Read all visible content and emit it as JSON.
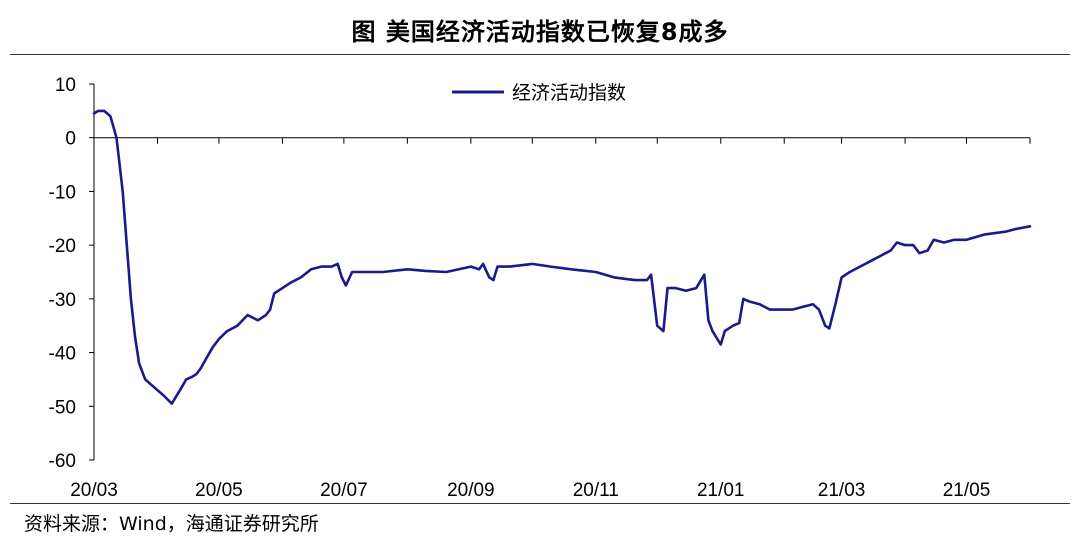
{
  "chart_data": {
    "type": "line",
    "title": "图  美国经济活动指数已恢复8成多",
    "xlabel": "",
    "ylabel": "",
    "ylim": [
      -60,
      10
    ],
    "yticks": [
      10,
      0,
      -10,
      -20,
      -30,
      -40,
      -50,
      -60
    ],
    "xticks": [
      "20/03",
      "20/05",
      "20/07",
      "20/09",
      "20/11",
      "21/01",
      "21/03",
      "21/05"
    ],
    "legend_position": "top-center",
    "grid": false,
    "series": [
      {
        "name": "经济活动指数",
        "color": "#1a1a8c",
        "x": [
          "2020-03-01",
          "2020-03-03",
          "2020-03-06",
          "2020-03-09",
          "2020-03-12",
          "2020-03-15",
          "2020-03-17",
          "2020-03-19",
          "2020-03-21",
          "2020-03-23",
          "2020-03-26",
          "2020-03-29",
          "2020-04-01",
          "2020-04-04",
          "2020-04-08",
          "2020-04-12",
          "2020-04-15",
          "2020-04-18",
          "2020-04-20",
          "2020-04-22",
          "2020-04-25",
          "2020-04-28",
          "2020-05-01",
          "2020-05-05",
          "2020-05-10",
          "2020-05-15",
          "2020-05-20",
          "2020-05-24",
          "2020-05-26",
          "2020-05-28",
          "2020-06-01",
          "2020-06-05",
          "2020-06-10",
          "2020-06-15",
          "2020-06-20",
          "2020-06-25",
          "2020-06-28",
          "2020-06-30",
          "2020-07-02",
          "2020-07-05",
          "2020-07-10",
          "2020-07-20",
          "2020-08-01",
          "2020-08-10",
          "2020-08-20",
          "2020-09-01",
          "2020-09-05",
          "2020-09-07",
          "2020-09-10",
          "2020-09-12",
          "2020-09-14",
          "2020-09-16",
          "2020-09-20",
          "2020-10-01",
          "2020-10-10",
          "2020-10-20",
          "2020-11-01",
          "2020-11-10",
          "2020-11-20",
          "2020-11-26",
          "2020-11-28",
          "2020-12-01",
          "2020-12-04",
          "2020-12-06",
          "2020-12-10",
          "2020-12-15",
          "2020-12-20",
          "2020-12-24",
          "2020-12-26",
          "2020-12-28",
          "2021-01-01",
          "2021-01-03",
          "2021-01-07",
          "2021-01-10",
          "2021-01-12",
          "2021-01-15",
          "2021-01-20",
          "2021-01-25",
          "2021-02-01",
          "2021-02-05",
          "2021-02-10",
          "2021-02-15",
          "2021-02-18",
          "2021-02-21",
          "2021-02-23",
          "2021-02-26",
          "2021-03-01",
          "2021-03-05",
          "2021-03-10",
          "2021-03-15",
          "2021-03-20",
          "2021-03-25",
          "2021-03-28",
          "2021-04-01",
          "2021-04-05",
          "2021-04-08",
          "2021-04-12",
          "2021-04-15",
          "2021-04-20",
          "2021-04-25",
          "2021-05-01",
          "2021-05-10",
          "2021-05-20",
          "2021-05-25",
          "2021-06-01"
        ],
        "values": [
          4.5,
          5.0,
          5.0,
          4.0,
          0.0,
          -10.0,
          -20.0,
          -30.0,
          -37.0,
          -42.0,
          -45.0,
          -46.0,
          -47.0,
          -48.0,
          -49.5,
          -47.0,
          -45.0,
          -44.5,
          -44.0,
          -43.0,
          -41.0,
          -39.0,
          -37.5,
          -36.0,
          -35.0,
          -33.0,
          -34.0,
          -33.0,
          -32.0,
          -29.0,
          -28.0,
          -27.0,
          -26.0,
          -24.5,
          -24.0,
          -24.0,
          -23.5,
          -26.0,
          -27.5,
          -25.0,
          -25.0,
          -25.0,
          -24.5,
          -24.8,
          -25.0,
          -24.0,
          -24.5,
          -23.5,
          -26.0,
          -26.5,
          -24.0,
          -24.0,
          -24.0,
          -23.5,
          -24.0,
          -24.5,
          -25.0,
          -26.0,
          -26.5,
          -26.5,
          -25.5,
          -35.0,
          -36.0,
          -28.0,
          -28.0,
          -28.5,
          -28.0,
          -25.5,
          -34.0,
          -36.0,
          -38.5,
          -36.0,
          -35.0,
          -34.5,
          -30.0,
          -30.5,
          -31.0,
          -32.0,
          -32.0,
          -32.0,
          -31.5,
          -31.0,
          -32.0,
          -35.0,
          -35.5,
          -31.0,
          -26.0,
          -25.0,
          -24.0,
          -23.0,
          -22.0,
          -21.0,
          -19.5,
          -20.0,
          -20.0,
          -21.5,
          -21.0,
          -19.0,
          -19.5,
          -19.0,
          -19.0,
          -18.0,
          -17.5,
          -17.0,
          -16.5
        ]
      }
    ]
  },
  "source_text": "资料来源：Wind，海通证券研究所"
}
